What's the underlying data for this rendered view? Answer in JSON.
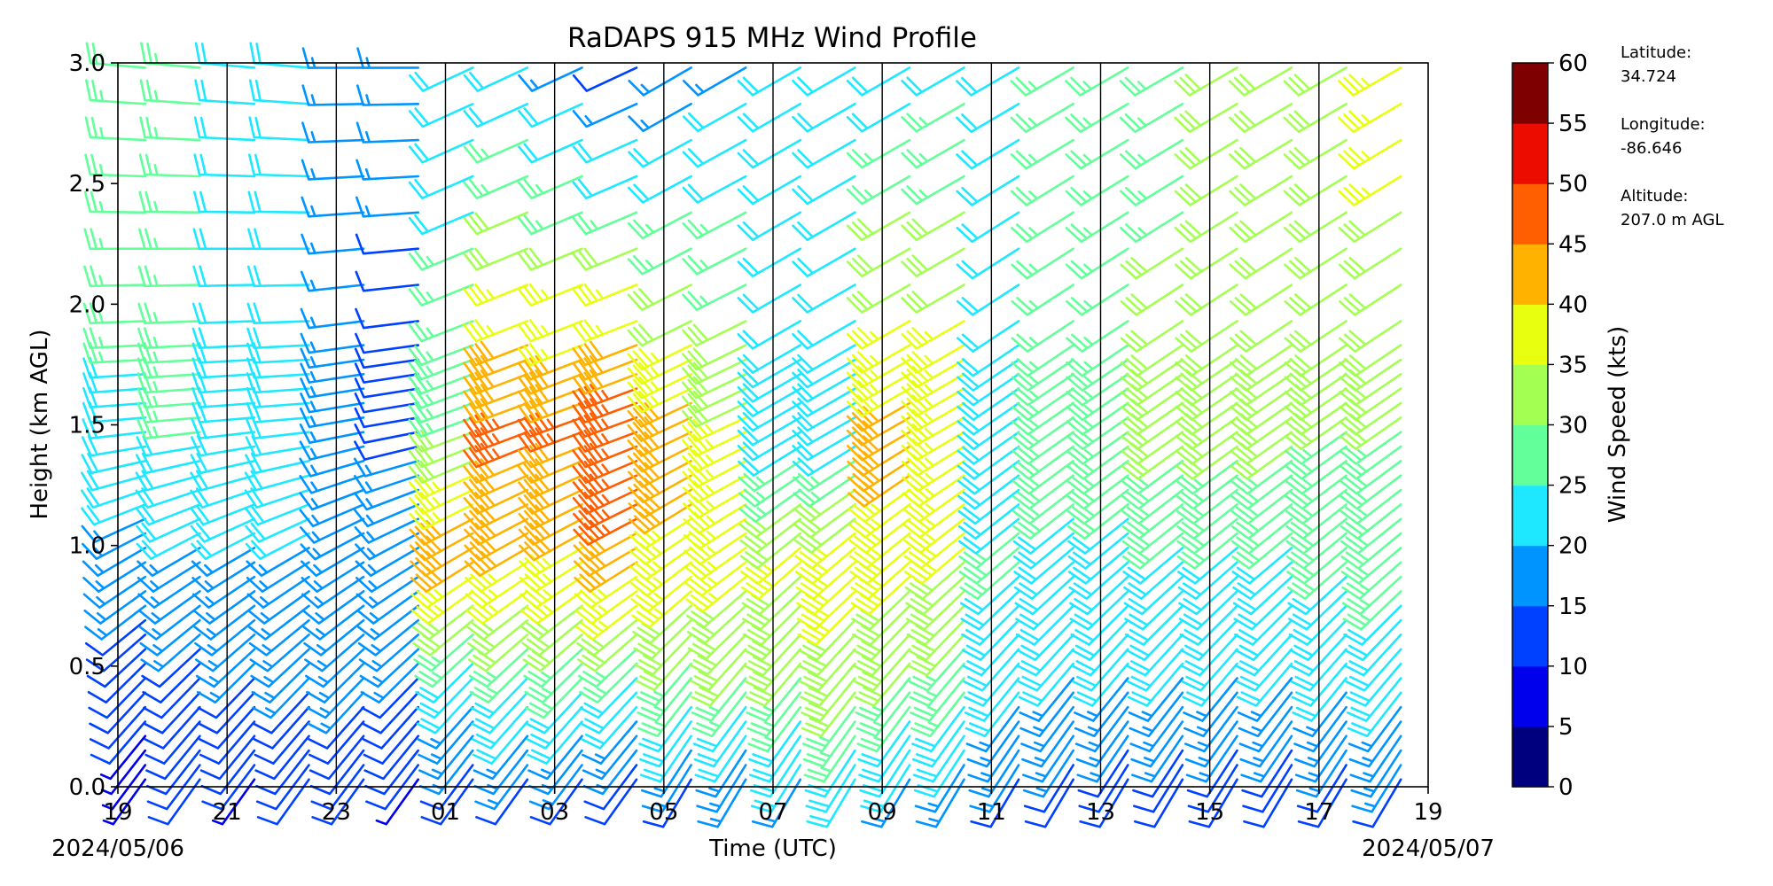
{
  "chart_data": {
    "type": "wind-barb-profile",
    "title": "RaDAPS 915 MHz Wind Profile",
    "xlabel": "Time (UTC)",
    "ylabel": "Height (km AGL)",
    "x_tick_labels": [
      "19",
      "21",
      "23",
      "01",
      "03",
      "05",
      "07",
      "09",
      "11",
      "13",
      "15",
      "17",
      "19"
    ],
    "x_date_labels": {
      "left": "2024/05/06",
      "right": "2024/05/07"
    },
    "x_range_hours_from_start": [
      0,
      24
    ],
    "y_ticks": [
      "0.0",
      "0.5",
      "1.0",
      "1.5",
      "2.0",
      "2.5",
      "3.0"
    ],
    "ylim": [
      0,
      3
    ],
    "profile_times_utc": [
      "19:30",
      "20:30",
      "21:30",
      "22:30",
      "23:30",
      "00:30",
      "01:30",
      "02:30",
      "03:30",
      "04:30",
      "05:30",
      "06:30",
      "07:30",
      "08:30",
      "09:30",
      "10:30",
      "11:30",
      "12:30",
      "13:30",
      "14:30",
      "15:30",
      "16:30",
      "17:30",
      "18:30"
    ],
    "low_mode_gate_spacing_km": 0.06,
    "high_mode_heights_km": [
      1.93,
      2.08,
      2.23,
      2.38,
      2.53,
      2.68,
      2.83,
      2.98
    ],
    "colorbar": {
      "label": "Wind Speed (kts)",
      "ticks": [
        "0",
        "5",
        "10",
        "15",
        "20",
        "25",
        "30",
        "35",
        "40",
        "45",
        "50",
        "55",
        "60"
      ],
      "colors": [
        "#00007f",
        "#0000ed",
        "#0040ff",
        "#0094ff",
        "#1ee8ff",
        "#62ff9a",
        "#a4ff53",
        "#e8ff0f",
        "#ffb300",
        "#ff5f00",
        "#ed0c00",
        "#7f0000"
      ]
    },
    "wind_speed_kts_by_profile": [
      [
        8,
        12,
        18,
        24,
        30
      ],
      [
        10,
        14,
        20,
        26,
        28
      ],
      [
        9,
        15,
        20,
        22,
        24
      ],
      [
        11,
        16,
        20,
        21,
        22
      ],
      [
        10,
        17,
        20,
        18,
        17
      ],
      [
        9,
        15,
        18,
        14,
        16
      ],
      [
        12,
        24,
        43,
        30,
        20
      ],
      [
        13,
        26,
        42,
        46,
        22
      ],
      [
        14,
        27,
        40,
        46,
        18
      ],
      [
        12,
        26,
        44,
        50,
        12
      ],
      [
        14,
        29,
        39,
        42,
        16
      ],
      [
        15,
        30,
        38,
        36,
        18
      ],
      [
        18,
        30,
        36,
        22,
        20
      ],
      [
        20,
        33,
        38,
        22,
        22
      ],
      [
        19,
        30,
        38,
        42,
        22
      ],
      [
        18,
        28,
        36,
        40,
        24
      ],
      [
        14,
        22,
        26,
        20,
        24
      ],
      [
        13,
        20,
        24,
        28,
        26
      ],
      [
        12,
        20,
        24,
        28,
        26
      ],
      [
        12,
        20,
        25,
        32,
        28
      ],
      [
        12,
        20,
        25,
        32,
        32
      ],
      [
        12,
        20,
        25,
        32,
        32
      ],
      [
        13,
        21,
        26,
        30,
        34
      ],
      [
        14,
        22,
        27,
        30,
        38
      ]
    ],
    "wind_direction_deg_by_profile": [
      [
        215,
        225,
        240,
        265,
        275
      ],
      [
        215,
        225,
        240,
        265,
        275
      ],
      [
        215,
        225,
        240,
        265,
        275
      ],
      [
        215,
        225,
        240,
        265,
        275
      ],
      [
        215,
        225,
        240,
        260,
        270
      ],
      [
        215,
        225,
        240,
        260,
        270
      ],
      [
        215,
        225,
        240,
        250,
        245
      ],
      [
        215,
        225,
        240,
        250,
        245
      ],
      [
        215,
        225,
        240,
        250,
        245
      ],
      [
        215,
        225,
        240,
        250,
        245
      ],
      [
        210,
        220,
        235,
        245,
        240
      ],
      [
        210,
        220,
        235,
        245,
        240
      ],
      [
        210,
        220,
        230,
        240,
        240
      ],
      [
        210,
        220,
        230,
        240,
        240
      ],
      [
        210,
        220,
        230,
        240,
        240
      ],
      [
        210,
        220,
        230,
        240,
        240
      ],
      [
        210,
        220,
        230,
        235,
        240
      ],
      [
        210,
        220,
        230,
        235,
        240
      ],
      [
        210,
        220,
        230,
        235,
        240
      ],
      [
        210,
        220,
        230,
        235,
        240
      ],
      [
        210,
        220,
        230,
        235,
        240
      ],
      [
        210,
        220,
        230,
        235,
        240
      ],
      [
        210,
        220,
        230,
        235,
        240
      ],
      [
        210,
        220,
        230,
        235,
        240
      ]
    ],
    "speed_profile_anchor_heights_km": [
      0.0,
      0.5,
      1.0,
      1.5,
      3.0
    ]
  },
  "site_info": {
    "latitude_label": "Latitude:",
    "latitude_value": "34.724",
    "longitude_label": "Longitude:",
    "longitude_value": "-86.646",
    "altitude_label": "Altitude:",
    "altitude_value": "207.0 m AGL"
  }
}
